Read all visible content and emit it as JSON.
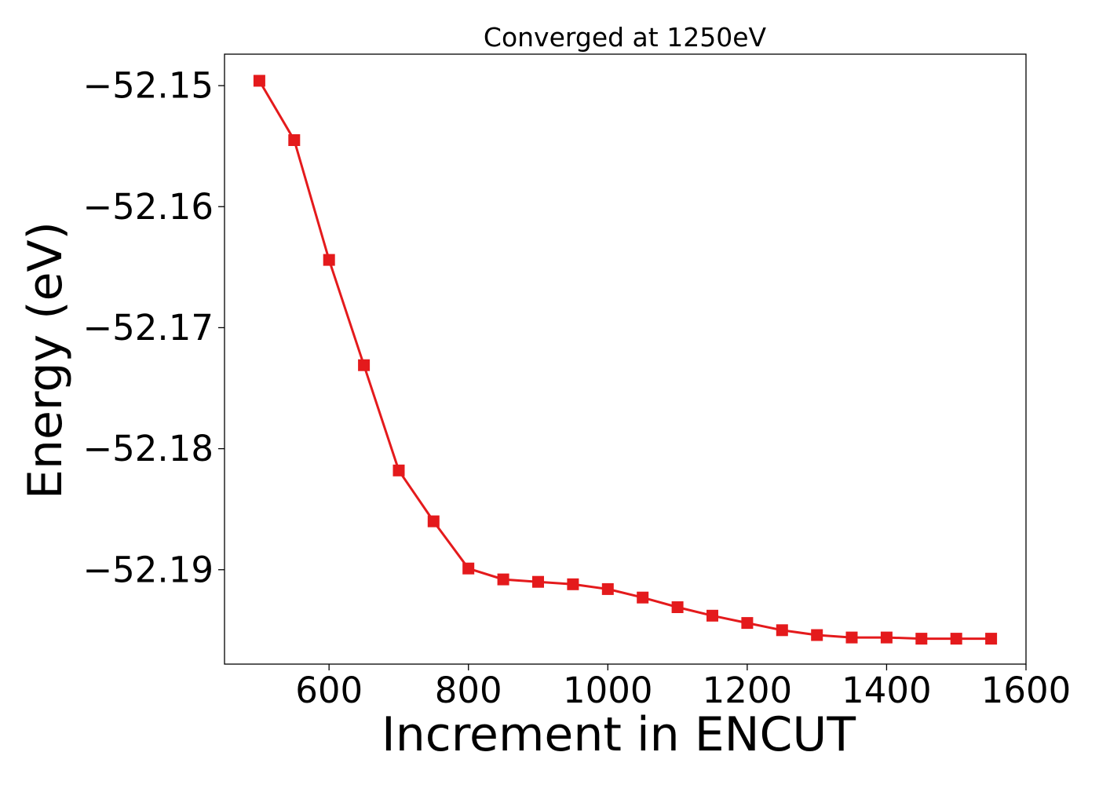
{
  "chart_data": {
    "type": "line",
    "title": "Converged at 1250eV",
    "xlabel": "Increment in ENCUT",
    "ylabel": "Energy (eV)",
    "xlim": [
      450,
      1600
    ],
    "ylim": [
      -52.1978,
      -52.1474
    ],
    "xticks": [
      600,
      800,
      1000,
      1200,
      1400,
      1600
    ],
    "xtick_labels": [
      "600",
      "800",
      "1000",
      "1200",
      "1400",
      "1600"
    ],
    "yticks": [
      -52.15,
      -52.16,
      -52.17,
      -52.18,
      -52.19
    ],
    "ytick_labels": [
      "−52.15",
      "−52.16",
      "−52.17",
      "−52.18",
      "−52.19"
    ],
    "grid": false,
    "series": [
      {
        "color": "#e41a1c",
        "marker": "square",
        "x": [
          500,
          550,
          600,
          650,
          700,
          750,
          800,
          850,
          900,
          950,
          1000,
          1050,
          1100,
          1150,
          1200,
          1250,
          1300,
          1350,
          1400,
          1450,
          1500,
          1550
        ],
        "y": [
          -52.1496,
          -52.1545,
          -52.1644,
          -52.1731,
          -52.1818,
          -52.186,
          -52.1899,
          -52.1908,
          -52.191,
          -52.1912,
          -52.1916,
          -52.1923,
          -52.1931,
          -52.1938,
          -52.1944,
          -52.195,
          -52.1954,
          -52.1956,
          -52.1956,
          -52.1957,
          -52.1957,
          -52.1957
        ]
      }
    ]
  }
}
